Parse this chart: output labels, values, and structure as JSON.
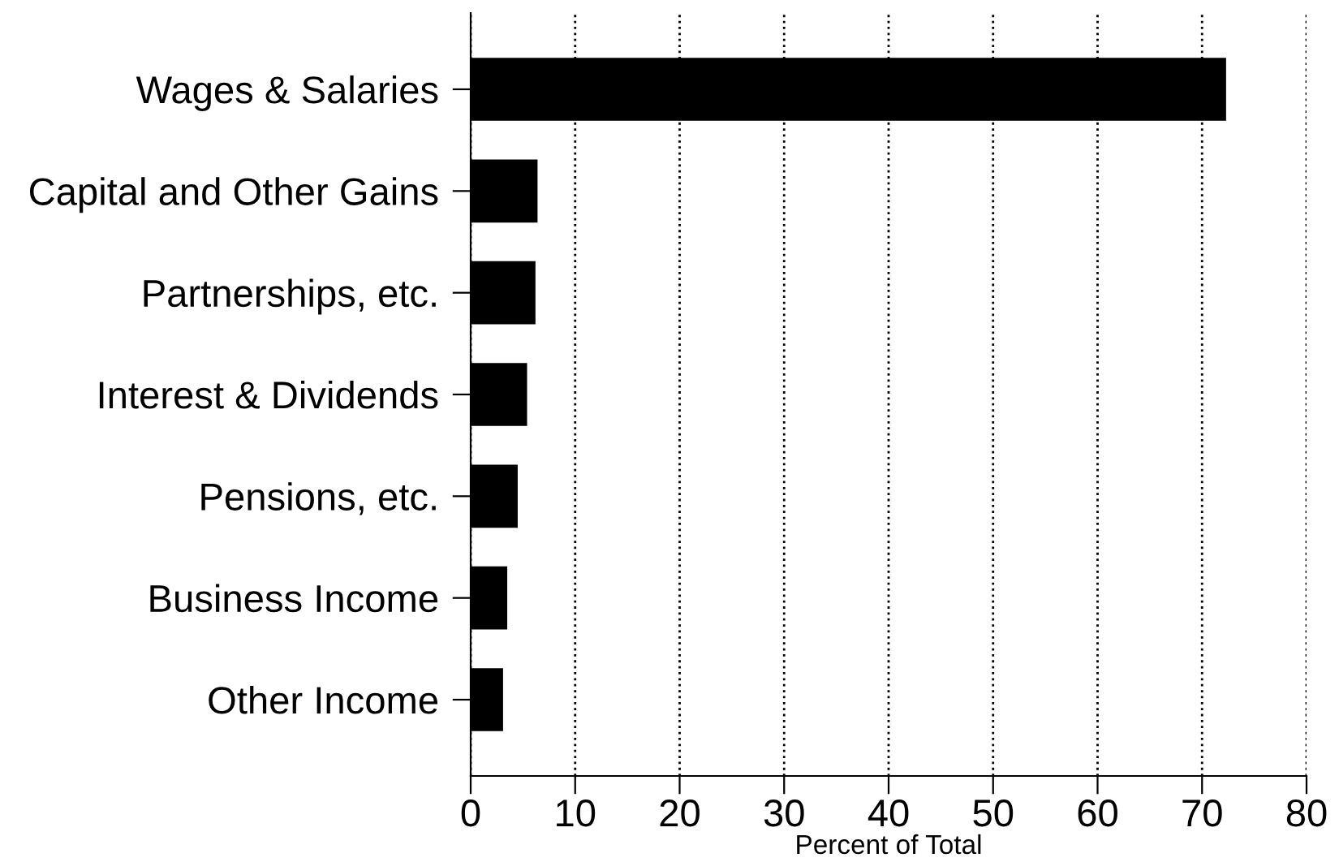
{
  "chart_data": {
    "type": "bar",
    "orientation": "horizontal",
    "xlabel": "Percent of Total",
    "categories": [
      "Wages & Salaries",
      "Capital and Other Gains",
      "Partnerships, etc.",
      "Interest & Dividends",
      "Pensions, etc.",
      "Business Income",
      "Other Income"
    ],
    "values": [
      72.3,
      6.4,
      6.2,
      5.4,
      4.5,
      3.5,
      3.1
    ],
    "color": "#000000",
    "xlim": [
      0,
      80
    ],
    "xticks": [
      0,
      10,
      20,
      30,
      40,
      50,
      60,
      70,
      80
    ],
    "grid": "x",
    "line_style": "dotted"
  }
}
